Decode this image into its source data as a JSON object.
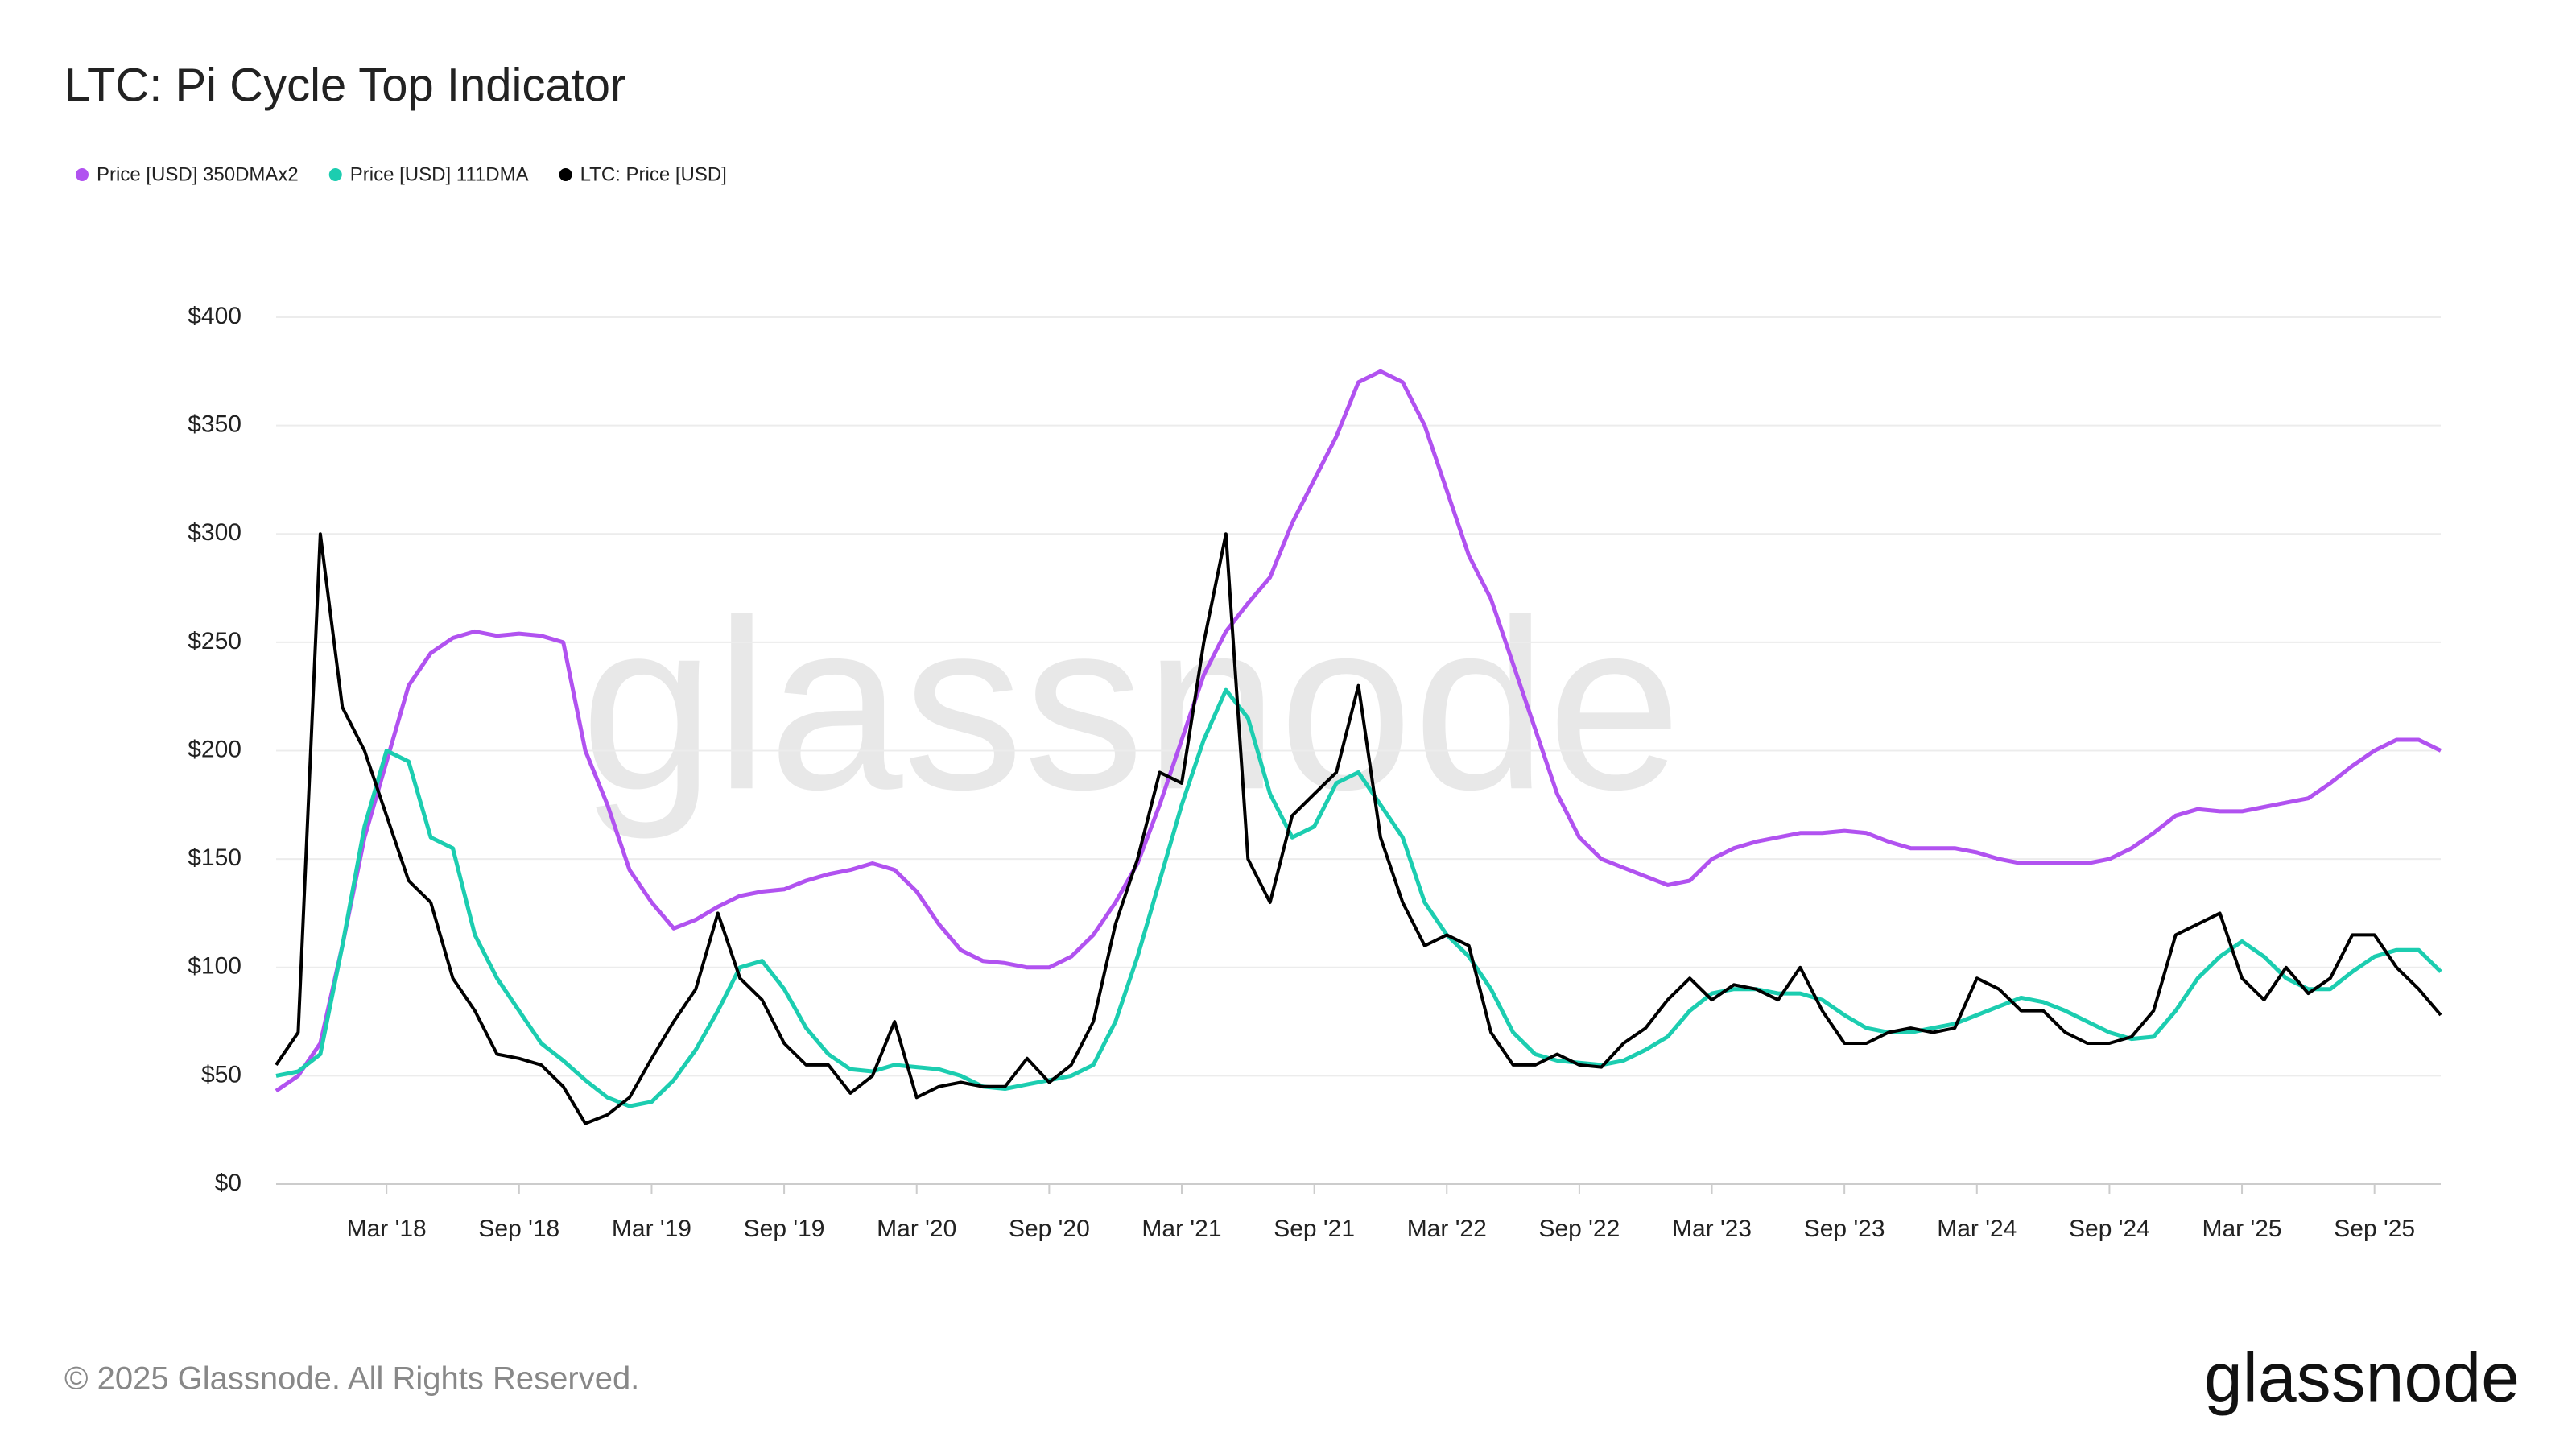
{
  "chart_data": {
    "type": "line",
    "title": "LTC: Pi Cycle Top Indicator",
    "watermark": "glassnode",
    "footer": "© 2025 Glassnode. All Rights Reserved.",
    "brand": "glassnode",
    "legend": "top-left",
    "grid": true,
    "x": [
      "2017-10",
      "2017-11",
      "2017-12",
      "2018-01",
      "2018-02",
      "2018-03",
      "2018-04",
      "2018-05",
      "2018-06",
      "2018-07",
      "2018-08",
      "2018-09",
      "2018-10",
      "2018-11",
      "2018-12",
      "2019-01",
      "2019-02",
      "2019-03",
      "2019-04",
      "2019-05",
      "2019-06",
      "2019-07",
      "2019-08",
      "2019-09",
      "2019-10",
      "2019-11",
      "2019-12",
      "2020-01",
      "2020-02",
      "2020-03",
      "2020-04",
      "2020-05",
      "2020-06",
      "2020-07",
      "2020-08",
      "2020-09",
      "2020-10",
      "2020-11",
      "2020-12",
      "2021-01",
      "2021-02",
      "2021-03",
      "2021-04",
      "2021-05",
      "2021-06",
      "2021-07",
      "2021-08",
      "2021-09",
      "2021-10",
      "2021-11",
      "2021-12",
      "2022-01",
      "2022-02",
      "2022-03",
      "2022-04",
      "2022-05",
      "2022-06",
      "2022-07",
      "2022-08",
      "2022-09",
      "2022-10",
      "2022-11",
      "2022-12",
      "2023-01",
      "2023-02",
      "2023-03",
      "2023-04",
      "2023-05",
      "2023-06",
      "2023-07",
      "2023-08",
      "2023-09",
      "2023-10",
      "2023-11",
      "2023-12",
      "2024-01",
      "2024-02",
      "2024-03",
      "2024-04",
      "2024-05",
      "2024-06",
      "2024-07",
      "2024-08",
      "2024-09",
      "2024-10",
      "2024-11",
      "2024-12",
      "2025-01",
      "2025-02",
      "2025-03",
      "2025-04",
      "2025-05",
      "2025-06",
      "2025-07",
      "2025-08",
      "2025-09",
      "2025-10",
      "2025-11",
      "2025-12"
    ],
    "series": [
      {
        "name": "Price [USD] 350DMAx2",
        "color": "#b152f0",
        "values": [
          43,
          50,
          65,
          110,
          160,
          195,
          230,
          245,
          252,
          255,
          253,
          254,
          253,
          250,
          200,
          175,
          145,
          130,
          118,
          122,
          128,
          133,
          135,
          136,
          140,
          143,
          145,
          148,
          145,
          135,
          120,
          108,
          103,
          102,
          100,
          100,
          105,
          115,
          130,
          148,
          175,
          205,
          235,
          255,
          268,
          280,
          305,
          325,
          345,
          370,
          375,
          370,
          350,
          320,
          290,
          270,
          240,
          210,
          180,
          160,
          150,
          146,
          142,
          138,
          140,
          150,
          155,
          158,
          160,
          162,
          162,
          163,
          162,
          158,
          155,
          155,
          155,
          153,
          150,
          148,
          148,
          148,
          148,
          150,
          155,
          162,
          170,
          173,
          172,
          172,
          174,
          176,
          178,
          185,
          193,
          200,
          205,
          205,
          200
        ]
      },
      {
        "name": "Price [USD] 111DMA",
        "color": "#1ccdb0",
        "values": [
          50,
          52,
          60,
          110,
          165,
          200,
          195,
          160,
          155,
          115,
          95,
          80,
          65,
          57,
          48,
          40,
          36,
          38,
          48,
          62,
          80,
          100,
          103,
          90,
          72,
          60,
          53,
          52,
          55,
          54,
          53,
          50,
          45,
          44,
          46,
          48,
          50,
          55,
          75,
          105,
          140,
          175,
          205,
          228,
          215,
          180,
          160,
          165,
          185,
          190,
          175,
          160,
          130,
          115,
          105,
          90,
          70,
          60,
          57,
          56,
          55,
          57,
          62,
          68,
          80,
          88,
          90,
          90,
          88,
          88,
          85,
          78,
          72,
          70,
          70,
          72,
          74,
          78,
          82,
          86,
          84,
          80,
          75,
          70,
          67,
          68,
          80,
          95,
          105,
          112,
          105,
          95,
          90,
          90,
          98,
          105,
          108,
          108,
          98
        ]
      },
      {
        "name": "LTC: Price [USD]",
        "color": "#000000",
        "values": [
          55,
          70,
          300,
          220,
          200,
          170,
          140,
          130,
          95,
          80,
          60,
          58,
          55,
          45,
          28,
          32,
          40,
          58,
          75,
          90,
          125,
          95,
          85,
          65,
          55,
          55,
          42,
          50,
          75,
          40,
          45,
          47,
          45,
          45,
          58,
          47,
          55,
          75,
          120,
          150,
          190,
          185,
          250,
          300,
          150,
          130,
          170,
          180,
          190,
          230,
          160,
          130,
          110,
          115,
          110,
          70,
          55,
          55,
          60,
          55,
          54,
          65,
          72,
          85,
          95,
          85,
          92,
          90,
          85,
          100,
          80,
          65,
          65,
          70,
          72,
          70,
          72,
          95,
          90,
          80,
          80,
          70,
          65,
          65,
          68,
          80,
          115,
          120,
          125,
          95,
          85,
          100,
          88,
          95,
          115,
          115,
          100,
          90,
          78
        ]
      }
    ],
    "xlim": [
      "2017-10",
      "2025-12"
    ],
    "xticks": [
      {
        "value": "2018-03",
        "label": "Mar '18"
      },
      {
        "value": "2018-09",
        "label": "Sep '18"
      },
      {
        "value": "2019-03",
        "label": "Mar '19"
      },
      {
        "value": "2019-09",
        "label": "Sep '19"
      },
      {
        "value": "2020-03",
        "label": "Mar '20"
      },
      {
        "value": "2020-09",
        "label": "Sep '20"
      },
      {
        "value": "2021-03",
        "label": "Mar '21"
      },
      {
        "value": "2021-09",
        "label": "Sep '21"
      },
      {
        "value": "2022-03",
        "label": "Mar '22"
      },
      {
        "value": "2022-09",
        "label": "Sep '22"
      },
      {
        "value": "2023-03",
        "label": "Mar '23"
      },
      {
        "value": "2023-09",
        "label": "Sep '23"
      },
      {
        "value": "2024-03",
        "label": "Mar '24"
      },
      {
        "value": "2024-09",
        "label": "Sep '24"
      },
      {
        "value": "2025-03",
        "label": "Mar '25"
      },
      {
        "value": "2025-09",
        "label": "Sep '25"
      }
    ],
    "ylim": [
      0,
      400
    ],
    "yticks": [
      {
        "value": 0,
        "label": "$0"
      },
      {
        "value": 50,
        "label": "$50"
      },
      {
        "value": 100,
        "label": "$100"
      },
      {
        "value": 150,
        "label": "$150"
      },
      {
        "value": 200,
        "label": "$200"
      },
      {
        "value": 250,
        "label": "$250"
      },
      {
        "value": 300,
        "label": "$300"
      },
      {
        "value": 350,
        "label": "$350"
      },
      {
        "value": 400,
        "label": "$400"
      }
    ]
  }
}
